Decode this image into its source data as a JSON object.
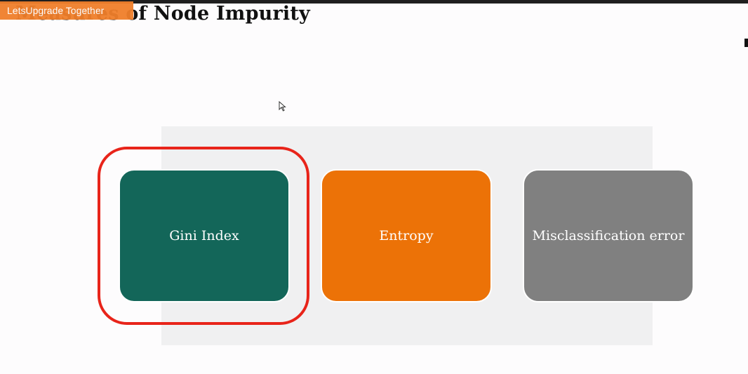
{
  "slide": {
    "title": "Measures of Node Impurity",
    "brand_badge": "LetsUpgrade Together"
  },
  "cards": [
    {
      "label": "Gini Index",
      "color": "#136659",
      "highlighted": true
    },
    {
      "label": "Entropy",
      "color": "#ec7207",
      "highlighted": false
    },
    {
      "label": "Misclassification error",
      "color": "#808080",
      "highlighted": false
    }
  ],
  "colors": {
    "highlight_ring": "#e8241a",
    "brand_badge": "#f07f2b",
    "panel_background": "#f0f0f1"
  },
  "icons": {
    "cursor": "mouse-pointer-icon"
  }
}
